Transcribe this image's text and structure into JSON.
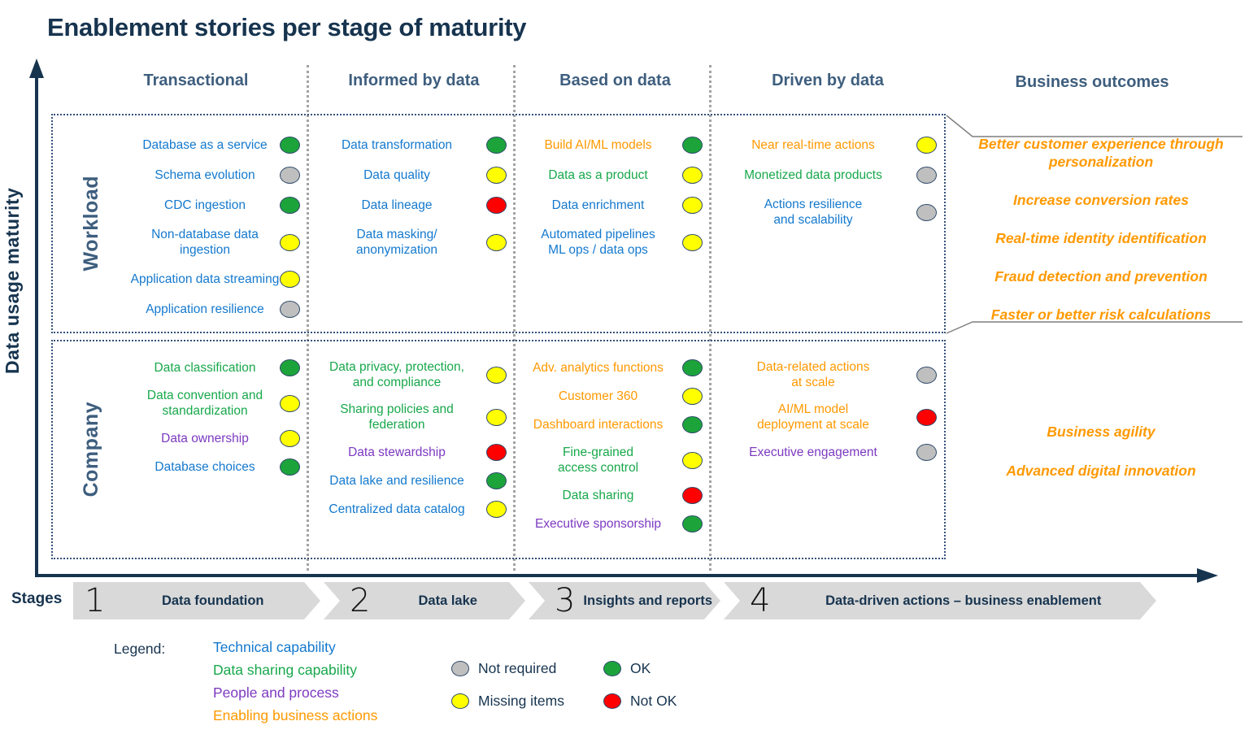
{
  "title": "Enablement stories per stage of maturity",
  "y_axis_label": "Data usage maturity",
  "stage_columns": [
    {
      "label": "Transactional"
    },
    {
      "label": "Informed by data"
    },
    {
      "label": "Based on data"
    },
    {
      "label": "Driven by data"
    }
  ],
  "business_outcomes_header": "Business outcomes",
  "rows": [
    {
      "label": "Workload",
      "cells": [
        [
          {
            "text": "Database as a service",
            "category": "technical",
            "status": "ok"
          },
          {
            "text": "Schema evolution",
            "category": "technical",
            "status": "not_required"
          },
          {
            "text": "CDC ingestion",
            "category": "technical",
            "status": "ok"
          },
          {
            "text": "Non-database data\ningestion",
            "category": "technical",
            "status": "missing"
          },
          {
            "text": "Application data streaming",
            "category": "technical",
            "status": "missing"
          },
          {
            "text": "Application resilience",
            "category": "technical",
            "status": "not_required"
          }
        ],
        [
          {
            "text": "Data transformation",
            "category": "technical",
            "status": "ok"
          },
          {
            "text": "Data quality",
            "category": "technical",
            "status": "missing"
          },
          {
            "text": "Data lineage",
            "category": "technical",
            "status": "not_ok"
          },
          {
            "text": "Data masking/\nanonymization",
            "category": "technical",
            "status": "missing"
          }
        ],
        [
          {
            "text": "Build AI/ML models",
            "category": "business",
            "status": "ok"
          },
          {
            "text": "Data as a product",
            "category": "sharing",
            "status": "missing"
          },
          {
            "text": "Data enrichment",
            "category": "technical",
            "status": "missing"
          },
          {
            "text": "Automated pipelines\nML ops / data ops",
            "category": "technical",
            "status": "missing"
          }
        ],
        [
          {
            "text": "Near real-time actions",
            "category": "business",
            "status": "missing"
          },
          {
            "text": "Monetized data products",
            "category": "sharing",
            "status": "not_required"
          },
          {
            "text": "Actions resilience\nand scalability",
            "category": "technical",
            "status": "not_required"
          }
        ]
      ],
      "outcomes": [
        "Better customer experience through\npersonalization",
        "Increase conversion rates",
        "Real-time identity identification",
        "Fraud detection and prevention",
        "Faster or better risk calculations"
      ]
    },
    {
      "label": "Company",
      "cells": [
        [
          {
            "text": "Data classification",
            "category": "sharing",
            "status": "ok"
          },
          {
            "text": "Data convention and\nstandardization",
            "category": "sharing",
            "status": "missing"
          },
          {
            "text": "Data ownership",
            "category": "people",
            "status": "missing"
          },
          {
            "text": "Database choices",
            "category": "technical",
            "status": "ok"
          }
        ],
        [
          {
            "text": "Data privacy, protection,\nand compliance",
            "category": "sharing",
            "status": "missing"
          },
          {
            "text": "Sharing policies and\nfederation",
            "category": "sharing",
            "status": "missing"
          },
          {
            "text": "Data stewardship",
            "category": "people",
            "status": "not_ok"
          },
          {
            "text": "Data lake and resilience",
            "category": "technical",
            "status": "ok"
          },
          {
            "text": "Centralized data catalog",
            "category": "technical",
            "status": "missing"
          }
        ],
        [
          {
            "text": "Adv. analytics functions",
            "category": "business",
            "status": "ok"
          },
          {
            "text": "Customer 360",
            "category": "business",
            "status": "missing"
          },
          {
            "text": "Dashboard interactions",
            "category": "business",
            "status": "ok"
          },
          {
            "text": "Fine-grained\naccess control",
            "category": "sharing",
            "status": "missing"
          },
          {
            "text": "Data sharing",
            "category": "sharing",
            "status": "not_ok"
          },
          {
            "text": "Executive sponsorship",
            "category": "people",
            "status": "ok"
          }
        ],
        [
          {
            "text": "Data-related actions\nat scale",
            "category": "business",
            "status": "not_required"
          },
          {
            "text": "AI/ML model\ndeployment at scale",
            "category": "business",
            "status": "not_ok"
          },
          {
            "text": "Executive engagement",
            "category": "people",
            "status": "not_required"
          }
        ]
      ],
      "outcomes": [
        "Business agility",
        "Advanced digital innovation"
      ]
    }
  ],
  "stages": {
    "label": "Stages",
    "items": [
      {
        "number": "1",
        "label": "Data foundation"
      },
      {
        "number": "2",
        "label": "Data lake"
      },
      {
        "number": "3",
        "label": "Insights and reports"
      },
      {
        "number": "4",
        "label": "Data-driven actions – business enablement"
      }
    ]
  },
  "legend": {
    "label": "Legend:",
    "categories": [
      {
        "key": "technical",
        "label": "Technical capability",
        "color": "#1479CE"
      },
      {
        "key": "sharing",
        "label": "Data sharing capability",
        "color": "#18A84B"
      },
      {
        "key": "people",
        "label": "People and process",
        "color": "#7D3AC1"
      },
      {
        "key": "business",
        "label": "Enabling business actions",
        "color": "#FF9900"
      }
    ],
    "statuses": [
      {
        "key": "not_required",
        "label": "Not required",
        "color": "#BFBFBF"
      },
      {
        "key": "missing",
        "label": "Missing items",
        "color": "#FFFF00"
      },
      {
        "key": "ok",
        "label": "OK",
        "color": "#1CA43B"
      },
      {
        "key": "not_ok",
        "label": "Not OK",
        "color": "#FF0000"
      }
    ]
  },
  "colors": {
    "title": "#17344F",
    "header": "#3E5E7E",
    "axis": "#17344F",
    "chevron_fill": "#D9D9D9",
    "outcome_text": "#FF9900",
    "bracket_line": "#7F7F7F",
    "dot_border": "#2E4A6B"
  }
}
